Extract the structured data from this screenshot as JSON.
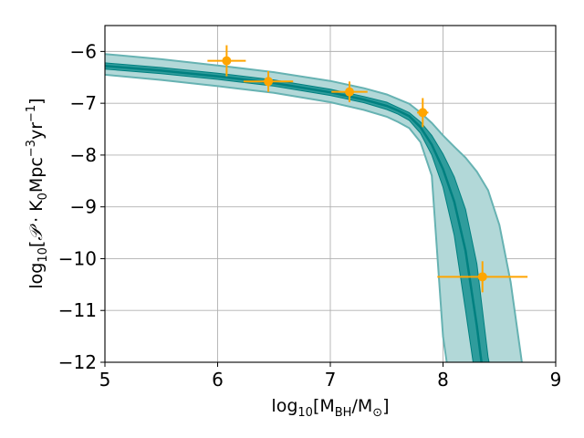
{
  "chart_data": {
    "type": "line",
    "xlabel": "log10[MBH/M⊙]",
    "ylabel": "log10[P·K0Mpc−3yr−1]",
    "xlim": [
      5,
      9
    ],
    "ylim": [
      -12,
      -5.5
    ],
    "grid": true,
    "x_ticks": [
      "5",
      "6",
      "7",
      "8",
      "9"
    ],
    "y_ticks": [
      "−6",
      "−7",
      "−8",
      "−9",
      "−10",
      "−11",
      "−12"
    ],
    "colors": {
      "outer_band": "#b2d8d8",
      "outer_edge": "#66b2b2",
      "inner_band": "#2f9c9c",
      "median": "#008080",
      "points": "#ffa500"
    },
    "bands": {
      "x": [
        5.0,
        5.5,
        6.0,
        6.5,
        7.0,
        7.3,
        7.5,
        7.6,
        7.7,
        7.8,
        7.9,
        8.0,
        8.1,
        8.2,
        8.3,
        8.4,
        8.5,
        8.6,
        8.7
      ],
      "outer_upper": [
        -6.05,
        -6.15,
        -6.27,
        -6.4,
        -6.57,
        -6.71,
        -6.83,
        -6.92,
        -7.01,
        -7.18,
        -7.38,
        -7.62,
        -7.84,
        -8.05,
        -8.32,
        -8.68,
        -9.35,
        -10.45,
        -12.0
      ],
      "inner_upper": [
        -6.22,
        -6.31,
        -6.42,
        -6.55,
        -6.73,
        -6.87,
        -6.98,
        -7.08,
        -7.18,
        -7.36,
        -7.62,
        -7.98,
        -8.42,
        -9.05,
        -10.1,
        -11.9,
        null,
        null,
        null
      ],
      "median": [
        -6.28,
        -6.37,
        -6.48,
        -6.61,
        -6.79,
        -6.93,
        -7.05,
        -7.14,
        -7.25,
        -7.46,
        -7.8,
        -8.27,
        -8.9,
        -9.85,
        -11.3,
        -13.0,
        null,
        null,
        null
      ],
      "inner_lower": [
        -6.34,
        -6.43,
        -6.54,
        -6.67,
        -6.85,
        -6.99,
        -7.12,
        -7.21,
        -7.33,
        -7.58,
        -8.0,
        -8.62,
        -9.55,
        -11.0,
        -12.5,
        null,
        null,
        null,
        null
      ],
      "outer_lower": [
        -6.45,
        -6.55,
        -6.67,
        -6.8,
        -6.98,
        -7.13,
        -7.26,
        -7.36,
        -7.48,
        -7.75,
        -8.4,
        -11.5,
        -13.0,
        null,
        null,
        null,
        null,
        null,
        null
      ]
    },
    "points": [
      {
        "x": 6.08,
        "y": -6.18,
        "xerr": 0.17,
        "yerr": 0.3
      },
      {
        "x": 6.45,
        "y": -6.58,
        "xerr": 0.22,
        "yerr": 0.2
      },
      {
        "x": 7.17,
        "y": -6.78,
        "xerr": 0.16,
        "yerr": 0.2
      },
      {
        "x": 7.82,
        "y": -7.18,
        "xerr": 0.05,
        "yerr": 0.28
      },
      {
        "x": 8.35,
        "y": -10.35,
        "xerr": 0.4,
        "yerr": 0.3
      }
    ]
  }
}
